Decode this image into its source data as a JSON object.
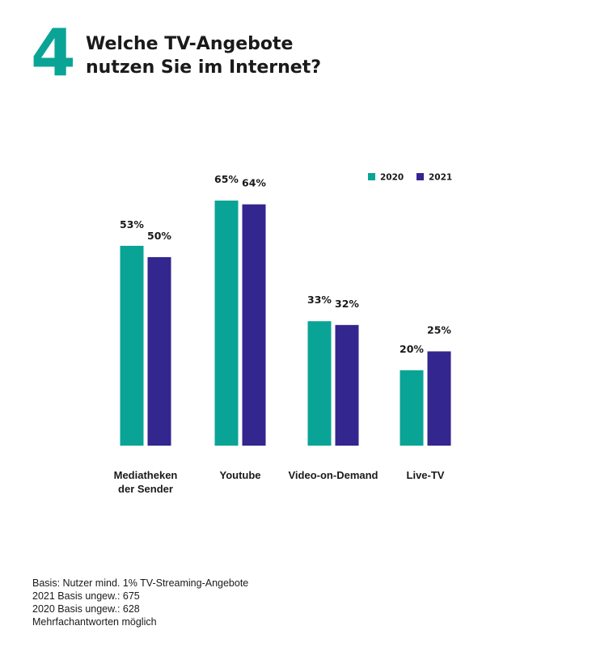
{
  "header": {
    "number": "4",
    "title_lines": [
      "Welche TV-Angebote",
      "nutzen Sie im Internet?"
    ]
  },
  "colors": {
    "accent": "#0aa496",
    "series_2020": "#0aa496",
    "series_2021": "#33268f",
    "text": "#1a1a1a"
  },
  "chart_data": {
    "type": "bar",
    "categories": [
      "Mediatheken der Sender",
      "Youtube",
      "Video-on-Demand",
      "Live-TV"
    ],
    "category_label_lines": [
      [
        "Mediatheken",
        "der Sender"
      ],
      [
        "Youtube"
      ],
      [
        "Video-on-Demand"
      ],
      [
        "Live-TV"
      ]
    ],
    "series": [
      {
        "name": "2020",
        "values": [
          53,
          65,
          33,
          20
        ],
        "labels": [
          "53%",
          "65%",
          "33%",
          "20%"
        ]
      },
      {
        "name": "2021",
        "values": [
          50,
          64,
          32,
          25
        ],
        "labels": [
          "50%",
          "64%",
          "32%",
          "25%"
        ]
      }
    ],
    "unit": "%",
    "ylim": [
      0,
      65
    ],
    "legend_position": "top-right",
    "grid": false
  },
  "footnote": [
    "Basis: Nutzer mind. 1% TV-Streaming-Angebote",
    "2021 Basis ungew.: 675",
    "2020 Basis ungew.: 628",
    "Mehrfachantworten möglich"
  ]
}
